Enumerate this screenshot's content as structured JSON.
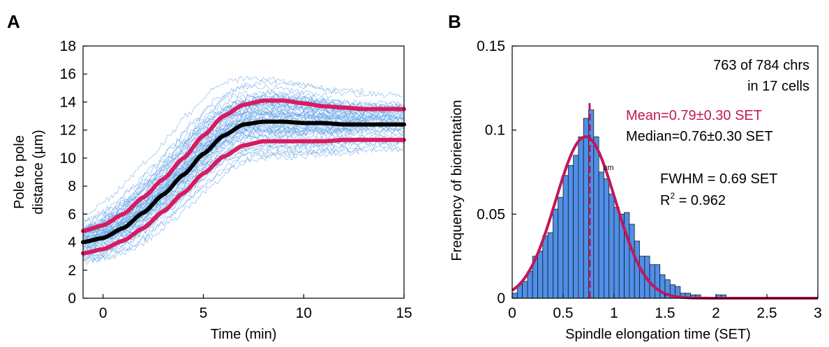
{
  "chart_data": [
    {
      "panel": "A",
      "type": "line",
      "xlabel": "Time (min)",
      "ylabel": [
        "Pole to pole",
        "distance (µm)"
      ],
      "xlim": [
        -1,
        15
      ],
      "ylim": [
        0,
        18
      ],
      "xticks": [
        0,
        5,
        10,
        15
      ],
      "yticks": [
        0,
        2,
        4,
        6,
        8,
        10,
        12,
        14,
        16,
        18
      ],
      "grid": false,
      "colors": {
        "traces": "#6aa7e6",
        "mean": "#000000",
        "band": "#d81b60"
      },
      "trace_count": 60,
      "x": [
        -1,
        0,
        1,
        2,
        3,
        4,
        5,
        6,
        7,
        8,
        9,
        10,
        11,
        12,
        13,
        14,
        15
      ],
      "series": [
        {
          "role": "mean",
          "values": [
            4.0,
            4.3,
            5.0,
            6.1,
            7.4,
            8.8,
            10.3,
            11.6,
            12.4,
            12.6,
            12.6,
            12.5,
            12.5,
            12.4,
            12.4,
            12.4,
            12.4
          ]
        },
        {
          "role": "upper",
          "values": [
            4.8,
            5.2,
            6.0,
            7.2,
            8.5,
            10.0,
            11.6,
            13.0,
            13.8,
            14.1,
            14.1,
            13.9,
            13.7,
            13.6,
            13.5,
            13.5,
            13.5
          ]
        },
        {
          "role": "lower",
          "values": [
            3.2,
            3.5,
            4.1,
            5.0,
            6.2,
            7.5,
            8.9,
            10.1,
            10.9,
            11.2,
            11.2,
            11.2,
            11.2,
            11.3,
            11.3,
            11.3,
            11.3
          ]
        }
      ]
    },
    {
      "panel": "B",
      "type": "bar",
      "xlabel": "Spindle elongation time (SET)",
      "ylabel": "Frequency of biorientation",
      "xlim": [
        0,
        3
      ],
      "ylim": [
        0,
        0.15
      ],
      "xticks": [
        0,
        0.5,
        1,
        1.5,
        2,
        2.5,
        3
      ],
      "xtick_labels": [
        "0",
        "0.5",
        "1",
        "1.5",
        "2",
        "2.5",
        "3"
      ],
      "yticks": [
        0,
        0.05,
        0.1,
        0.15
      ],
      "ytick_labels": [
        "0",
        "0.05",
        "0.1",
        "0.15"
      ],
      "bin_width": 0.05,
      "bins_start": [
        0,
        0.05,
        0.1,
        0.15,
        0.2,
        0.25,
        0.3,
        0.35,
        0.4,
        0.45,
        0.5,
        0.55,
        0.6,
        0.65,
        0.7,
        0.75,
        0.8,
        0.85,
        0.9,
        0.95,
        1.0,
        1.05,
        1.1,
        1.15,
        1.2,
        1.25,
        1.3,
        1.35,
        1.4,
        1.45,
        1.5,
        1.55,
        1.6,
        1.65,
        1.7,
        1.75,
        1.8,
        1.85,
        1.9,
        1.95,
        2.0,
        2.05
      ],
      "values": [
        0.003,
        0.008,
        0.01,
        0.016,
        0.025,
        0.028,
        0.037,
        0.039,
        0.053,
        0.06,
        0.073,
        0.079,
        0.085,
        0.096,
        0.107,
        0.112,
        0.096,
        0.075,
        0.071,
        0.062,
        0.054,
        0.05,
        0.051,
        0.044,
        0.034,
        0.025,
        0.025,
        0.02,
        0.02,
        0.014,
        0.011,
        0.008,
        0.007,
        0.003,
        0.003,
        0.002,
        0.002,
        0.0,
        0.0,
        0.0,
        0.002,
        0.002
      ],
      "fit": {
        "type": "gaussian",
        "amplitude": 0.096,
        "mean": 0.72,
        "fwhm": 0.69
      },
      "mean_line_x": 0.76,
      "colors": {
        "bars": "#4f8fe8",
        "fit": "#c0185a",
        "mean_line": "#b0185a"
      },
      "annotations": {
        "count_line1": "763 of 784 chrs",
        "count_line2": "in 17 cells",
        "mean": "Mean=0.79±0.30 SET",
        "median": "Median=0.76±0.30 SET",
        "small_mark": "µm",
        "fwhm": "FWHM = 0.69 SET",
        "r2_prefix": "R",
        "r2_sup": "2",
        "r2_value": " = 0.962"
      }
    }
  ]
}
